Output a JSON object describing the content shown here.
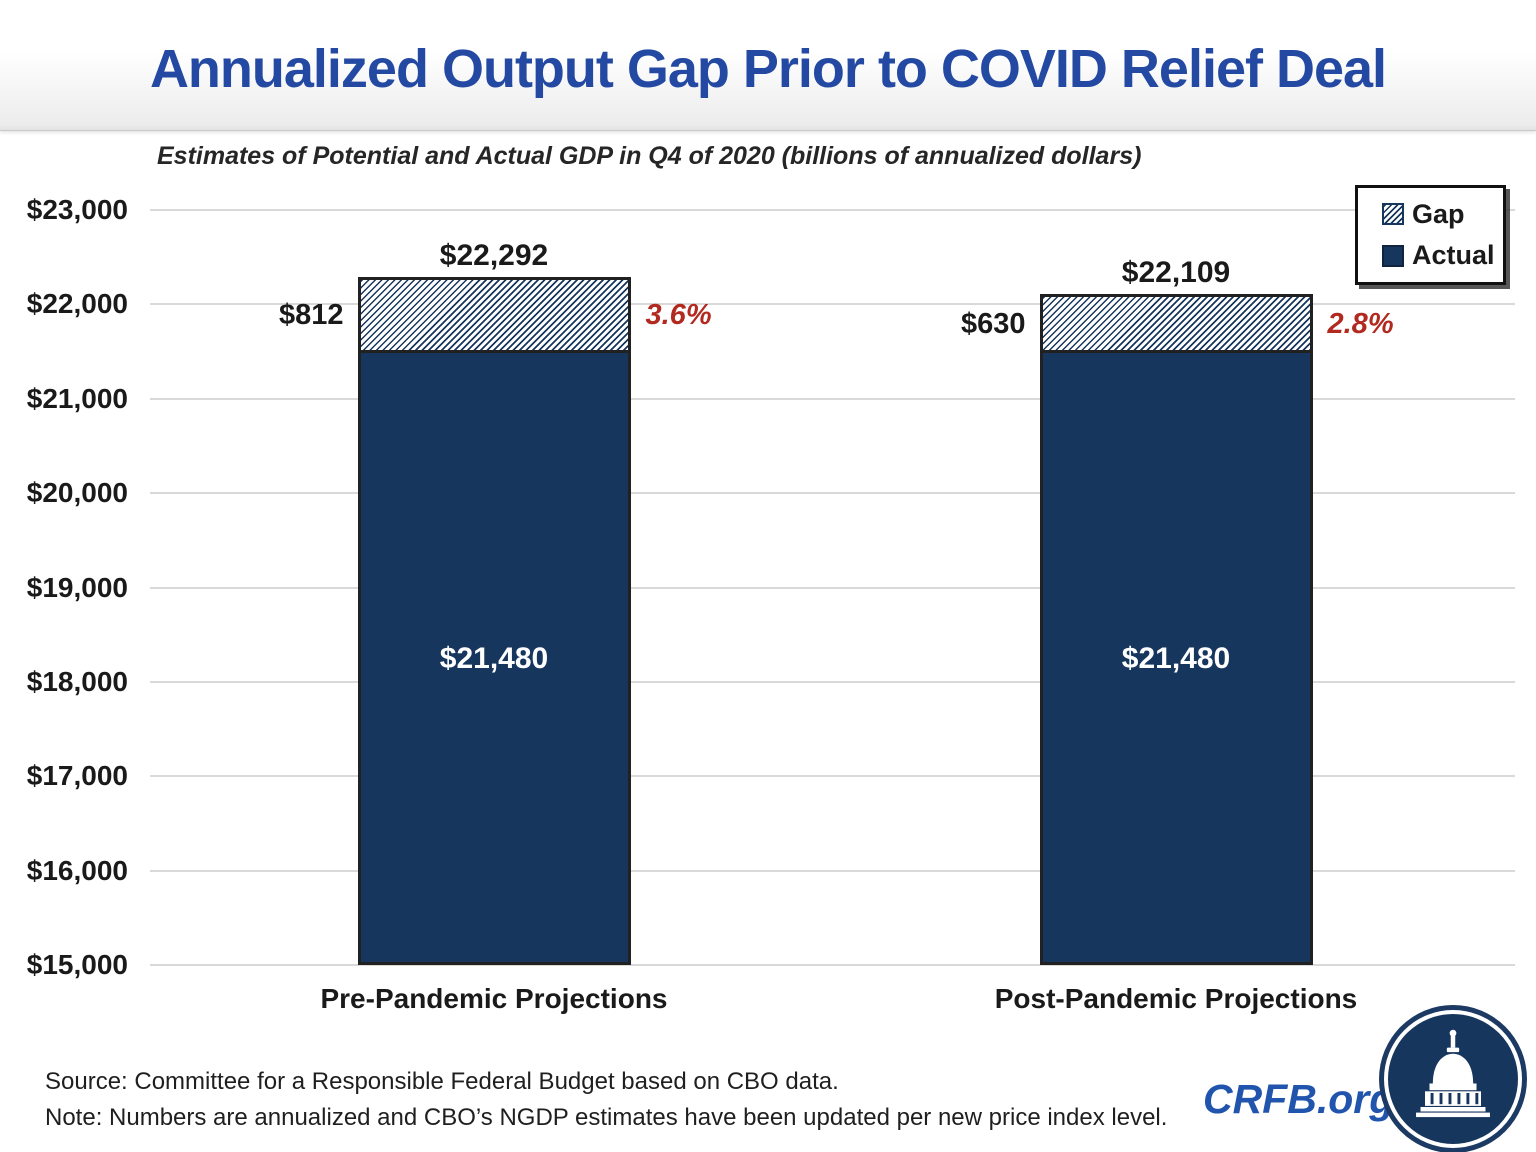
{
  "title": "Annualized Output Gap Prior to COVID Relief Deal",
  "subtitle": "Estimates of Potential and Actual GDP in Q4 of 2020 (billions of annualized dollars)",
  "legend": {
    "gap_label": "Gap",
    "actual_label": "Actual"
  },
  "footer": {
    "source": "Source: Committee for a Responsible Federal Budget based on CBO data.",
    "note": "Note: Numbers are annualized and CBO’s NGDP estimates have been updated per new price index level.",
    "brand": "CRFB.org"
  },
  "colors": {
    "navy": "#17365d",
    "red": "#b2291f",
    "title_blue": "#2349a3",
    "gridline": "#d9d9d9"
  },
  "chart_data": {
    "type": "bar",
    "stacked": true,
    "title": "Annualized Output Gap Prior to COVID Relief Deal",
    "subtitle": "Estimates of Potential and Actual GDP in Q4 of 2020 (billions of annualized dollars)",
    "categories": [
      "Pre-Pandemic Projections",
      "Post-Pandemic Projections"
    ],
    "series": [
      {
        "name": "Actual",
        "values": [
          21480,
          21480
        ]
      },
      {
        "name": "Gap",
        "values": [
          812,
          630
        ]
      }
    ],
    "ylim": [
      15000,
      23000
    ],
    "ytick_step": 1000,
    "grid": true,
    "legend_position": "top-right",
    "yticks": [
      {
        "value": 23000,
        "label": "$23,000"
      },
      {
        "value": 22000,
        "label": "$22,000"
      },
      {
        "value": 21000,
        "label": "$21,000"
      },
      {
        "value": 20000,
        "label": "$20,000"
      },
      {
        "value": 19000,
        "label": "$19,000"
      },
      {
        "value": 18000,
        "label": "$18,000"
      },
      {
        "value": 17000,
        "label": "$17,000"
      },
      {
        "value": 16000,
        "label": "$16,000"
      },
      {
        "value": 15000,
        "label": "$15,000"
      }
    ],
    "bars": [
      {
        "category": "Pre-Pandemic Projections",
        "actual": 21480,
        "gap": 812,
        "total": 22292,
        "labels": {
          "total": "$22,292",
          "gap": "$812",
          "actual": "$21,480",
          "percent": "3.6%"
        }
      },
      {
        "category": "Post-Pandemic Projections",
        "actual": 21480,
        "gap": 630,
        "total": 22109,
        "labels": {
          "total": "$22,109",
          "gap": "$630",
          "actual": "$21,480",
          "percent": "2.8%"
        }
      }
    ]
  }
}
